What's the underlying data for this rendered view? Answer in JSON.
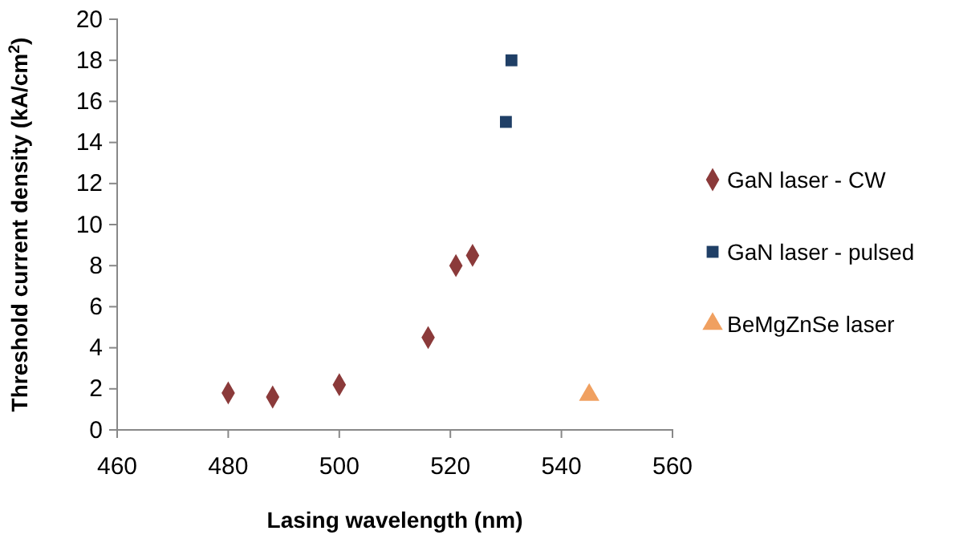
{
  "chart_data": {
    "type": "scatter",
    "xlabel": "Lasing wavelength (nm)",
    "ylabel": "Threshold current density (kA/cm$^{2}$)",
    "xlim": [
      460,
      560
    ],
    "xticks": [
      460,
      480,
      500,
      520,
      540,
      560
    ],
    "ylim": [
      0,
      20
    ],
    "yticks": [
      0,
      2,
      4,
      6,
      8,
      10,
      12,
      14,
      16,
      18,
      20
    ],
    "grid": false,
    "legend": "right",
    "series": [
      {
        "name": "GaN laser - CW",
        "color": "#8b3a3a",
        "marker": "diamond",
        "x": [
          480,
          488,
          500,
          516,
          521,
          524
        ],
        "values": [
          1.8,
          1.6,
          2.2,
          4.5,
          8.0,
          8.5
        ]
      },
      {
        "name": "GaN laser - pulsed",
        "color": "#1f3f66",
        "marker": "square",
        "x": [
          530,
          531
        ],
        "values": [
          15.0,
          18.0
        ]
      },
      {
        "name": "BeMgZnSe laser",
        "color": "#f0a060",
        "marker": "triangle",
        "x": [
          545
        ],
        "values": [
          1.7
        ]
      }
    ]
  }
}
